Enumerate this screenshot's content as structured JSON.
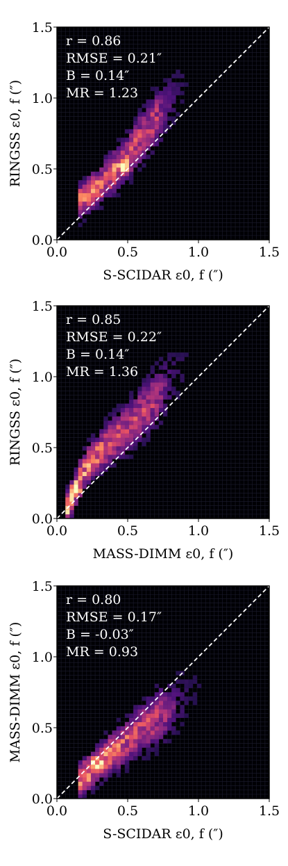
{
  "chart_data": [
    {
      "type": "heatmap",
      "subtype": "2d-histogram",
      "xlabel": "S-SCIDAR ε0, f (″)",
      "ylabel": "RINGSS ε0, f (″)",
      "xlim": [
        0.0,
        1.5
      ],
      "ylim": [
        0.0,
        1.5
      ],
      "x_ticks": [
        "0.0",
        "0.5",
        "1.0",
        "1.5"
      ],
      "y_ticks": [
        "0.0",
        "0.5",
        "1.0",
        "1.5"
      ],
      "grid": true,
      "reference_line": "y = x (dashed white)",
      "colormap": "magma",
      "stats": [
        "r = 0.86",
        "RMSE = 0.21″",
        "B = 0.14″",
        "MR = 1.23"
      ],
      "density_trend": {
        "x": [
          0.2,
          0.3,
          0.4,
          0.5,
          0.6,
          0.7
        ],
        "y": [
          0.3,
          0.38,
          0.48,
          0.58,
          0.73,
          0.85
        ]
      },
      "peak": {
        "x": 0.47,
        "y": 0.52
      }
    },
    {
      "type": "heatmap",
      "subtype": "2d-histogram",
      "xlabel": "MASS-DIMM ε0, f (″)",
      "ylabel": "RINGSS ε0, f (″)",
      "xlim": [
        0.0,
        1.5
      ],
      "ylim": [
        0.0,
        1.5
      ],
      "x_ticks": [
        "0.0",
        "0.5",
        "1.0",
        "1.5"
      ],
      "y_ticks": [
        "0.0",
        "0.5",
        "1.0",
        "1.5"
      ],
      "grid": true,
      "reference_line": "y = x (dashed white)",
      "colormap": "magma",
      "stats": [
        "r = 0.85",
        "RMSE = 0.22″",
        "B = 0.14″",
        "MR = 1.36"
      ],
      "density_trend": {
        "x": [
          0.13,
          0.17,
          0.22,
          0.3,
          0.4,
          0.5,
          0.6,
          0.7
        ],
        "y": [
          0.2,
          0.3,
          0.38,
          0.46,
          0.56,
          0.64,
          0.74,
          0.85
        ]
      },
      "peak": {
        "x": 0.13,
        "y": 0.2
      }
    },
    {
      "type": "heatmap",
      "subtype": "2d-histogram",
      "xlabel": "S-SCIDAR ε0, f (″)",
      "ylabel": "MASS-DIMM ε0, f (″)",
      "xlim": [
        0.0,
        1.5
      ],
      "ylim": [
        0.0,
        1.5
      ],
      "x_ticks": [
        "0.0",
        "0.5",
        "1.0",
        "1.5"
      ],
      "y_ticks": [
        "0.0",
        "0.5",
        "1.0",
        "1.5"
      ],
      "grid": true,
      "reference_line": "y = x (dashed white)",
      "colormap": "magma",
      "stats": [
        "r = 0.80",
        "RMSE = 0.17″",
        "B = -0.03″",
        "MR = 0.93"
      ],
      "density_trend": {
        "x": [
          0.22,
          0.28,
          0.35,
          0.45,
          0.55,
          0.65,
          0.75
        ],
        "y": [
          0.18,
          0.23,
          0.3,
          0.37,
          0.45,
          0.53,
          0.6
        ]
      },
      "peak": {
        "x": 0.27,
        "y": 0.24
      }
    }
  ]
}
